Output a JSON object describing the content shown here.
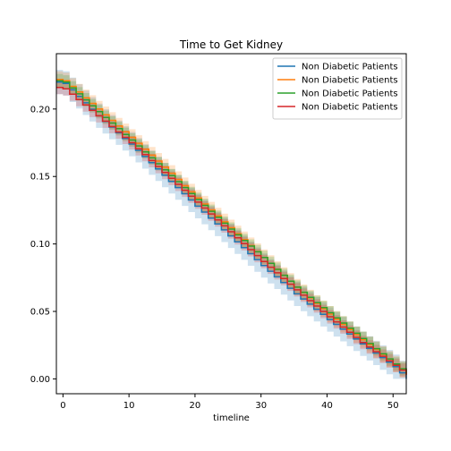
{
  "chart_data": {
    "type": "line",
    "title": "Time to Get Kidney",
    "xlabel": "timeline",
    "ylabel": "",
    "xlim": [
      -1,
      52
    ],
    "ylim": [
      -0.011,
      0.241
    ],
    "xticks": [
      0,
      10,
      20,
      30,
      40,
      50
    ],
    "yticks": [
      0.0,
      0.05,
      0.1,
      0.15,
      0.2
    ],
    "ytick_labels": [
      "0.00",
      "0.05",
      "0.10",
      "0.15",
      "0.20"
    ],
    "legend_position": "top-right",
    "grid": false,
    "step_curve": true,
    "confidence_band": true,
    "series": [
      {
        "name": "Non Diabetic Patients",
        "color": "#1f77b4",
        "x": [
          -1,
          0,
          5,
          10,
          15,
          20,
          25,
          30,
          35,
          40,
          45,
          50,
          52
        ],
        "values": [
          0.22,
          0.219,
          0.195,
          0.174,
          0.151,
          0.128,
          0.106,
          0.084,
          0.063,
          0.044,
          0.026,
          0.009,
          0.0
        ],
        "band": 0.009
      },
      {
        "name": "Non Diabetic Patients",
        "color": "#ff7f0e",
        "x": [
          -1,
          0,
          5,
          10,
          15,
          20,
          25,
          30,
          35,
          40,
          45,
          50,
          52
        ],
        "values": [
          0.222,
          0.221,
          0.2,
          0.179,
          0.157,
          0.134,
          0.112,
          0.09,
          0.068,
          0.048,
          0.029,
          0.011,
          0.003
        ],
        "band": 0.006
      },
      {
        "name": "Non Diabetic Patients",
        "color": "#2ca02c",
        "x": [
          -1,
          0,
          5,
          10,
          15,
          20,
          25,
          30,
          35,
          40,
          45,
          50,
          52
        ],
        "values": [
          0.221,
          0.22,
          0.198,
          0.177,
          0.155,
          0.133,
          0.111,
          0.09,
          0.068,
          0.049,
          0.03,
          0.011,
          0.004
        ],
        "band": 0.005
      },
      {
        "name": "Non Diabetic Patients",
        "color": "#d62728",
        "x": [
          -1,
          0,
          5,
          10,
          15,
          20,
          25,
          30,
          35,
          40,
          45,
          50,
          52
        ],
        "values": [
          0.216,
          0.215,
          0.195,
          0.175,
          0.153,
          0.131,
          0.109,
          0.087,
          0.066,
          0.046,
          0.027,
          0.01,
          0.003
        ],
        "band": 0.005
      }
    ]
  }
}
